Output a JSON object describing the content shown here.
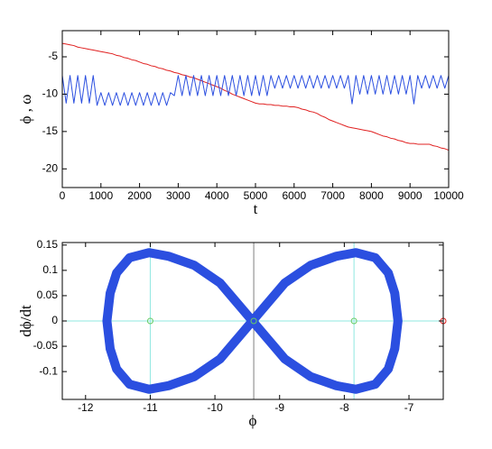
{
  "chart_data": [
    {
      "type": "line",
      "xlabel": "t",
      "ylabel": "ϕ , ω",
      "x": [
        0,
        100,
        200,
        300,
        400,
        500,
        600,
        700,
        800,
        900,
        1000,
        1100,
        1200,
        1300,
        1400,
        1500,
        1600,
        1700,
        1800,
        1900,
        2000,
        2100,
        2200,
        2300,
        2400,
        2500,
        2600,
        2700,
        2800,
        2900,
        3000,
        3100,
        3200,
        3300,
        3400,
        3500,
        3600,
        3700,
        3800,
        3900,
        4000,
        4100,
        4200,
        4300,
        4400,
        4500,
        4600,
        4700,
        4800,
        4900,
        5000,
        5100,
        5200,
        5300,
        5400,
        5500,
        5600,
        5700,
        5800,
        5900,
        6000,
        6100,
        6200,
        6300,
        6400,
        6500,
        6600,
        6700,
        6800,
        6900,
        7000,
        7100,
        7200,
        7300,
        7400,
        7500,
        7600,
        7700,
        7800,
        7900,
        8000,
        8100,
        8200,
        8300,
        8400,
        8500,
        8600,
        8700,
        8800,
        8900,
        9000,
        9100,
        9200,
        9300,
        9400,
        9500,
        9600,
        9700,
        9800,
        9900,
        10000
      ],
      "series": [
        {
          "color": "#e02020",
          "values": [
            -3.2,
            -3.3,
            -3.4,
            -3.5,
            -3.7,
            -3.8,
            -3.9,
            -4.0,
            -4.1,
            -4.2,
            -4.3,
            -4.4,
            -4.5,
            -4.6,
            -4.8,
            -4.9,
            -5.1,
            -5.2,
            -5.4,
            -5.5,
            -5.7,
            -5.9,
            -6.0,
            -6.2,
            -6.3,
            -6.5,
            -6.6,
            -6.8,
            -6.9,
            -7.1,
            -7.2,
            -7.4,
            -7.5,
            -7.7,
            -7.8,
            -8.0,
            -8.2,
            -8.4,
            -8.6,
            -8.8,
            -9.0,
            -9.2,
            -9.5,
            -9.7,
            -10.0,
            -10.2,
            -10.4,
            -10.6,
            -10.8,
            -11.0,
            -11.2,
            -11.3,
            -11.3,
            -11.4,
            -11.4,
            -11.5,
            -11.5,
            -11.6,
            -11.6,
            -11.7,
            -11.7,
            -11.8,
            -12.0,
            -12.1,
            -12.3,
            -12.4,
            -12.6,
            -12.9,
            -13.1,
            -13.4,
            -13.6,
            -13.8,
            -14.0,
            -14.2,
            -14.4,
            -14.5,
            -14.6,
            -14.7,
            -14.8,
            -14.9,
            -15.0,
            -15.2,
            -15.4,
            -15.6,
            -15.7,
            -15.9,
            -16.0,
            -16.2,
            -16.3,
            -16.5,
            -16.6,
            -16.6,
            -16.7,
            -16.7,
            -16.7,
            -16.7,
            -16.9,
            -17.0,
            -17.2,
            -17.3,
            -17.5
          ]
        },
        {
          "color": "#2b4fe0",
          "values": [
            -7.5,
            -11.2,
            -7.5,
            -11.2,
            -7.5,
            -11.2,
            -7.5,
            -11.2,
            -7.5,
            -11.5,
            -9.8,
            -11.5,
            -9.8,
            -11.5,
            -9.8,
            -11.5,
            -9.8,
            -11.5,
            -9.8,
            -11.5,
            -9.8,
            -11.5,
            -9.8,
            -11.5,
            -9.8,
            -11.5,
            -9.8,
            -11.5,
            -9.8,
            -10.2,
            -7.5,
            -10.2,
            -7.5,
            -10.2,
            -7.5,
            -10.2,
            -7.5,
            -10.2,
            -7.5,
            -10.2,
            -7.5,
            -10.2,
            -7.5,
            -10.2,
            -7.5,
            -10.2,
            -7.5,
            -10.2,
            -7.5,
            -10.2,
            -7.5,
            -10.2,
            -7.5,
            -10.2,
            -7.5,
            -9.2,
            -7.5,
            -9.2,
            -7.5,
            -9.2,
            -7.5,
            -9.2,
            -7.5,
            -9.2,
            -7.5,
            -9.2,
            -7.5,
            -9.2,
            -7.5,
            -9.2,
            -7.5,
            -9.2,
            -7.5,
            -9.2,
            -7.5,
            -11.3,
            -7.5,
            -10.0,
            -7.5,
            -10.0,
            -7.5,
            -10.0,
            -7.5,
            -10.0,
            -7.5,
            -10.0,
            -7.5,
            -10.0,
            -7.5,
            -10.0,
            -7.5,
            -11.3,
            -7.5,
            -9.2,
            -7.5,
            -9.2,
            -7.5,
            -9.2,
            -7.5,
            -9.2,
            -7.5
          ]
        }
      ],
      "xlim": [
        0,
        10000
      ],
      "xticks": [
        0,
        1000,
        2000,
        3000,
        4000,
        5000,
        6000,
        7000,
        8000,
        9000,
        10000
      ],
      "ylim": [
        -22.5,
        -1.5
      ],
      "yticks": [
        -20,
        -15,
        -10,
        -5
      ]
    },
    {
      "type": "line",
      "xlabel": "ϕ",
      "ylabel": "dϕ/dt",
      "x": [
        -9.42,
        -9.22,
        -8.92,
        -8.52,
        -8.12,
        -7.82,
        -7.52,
        -7.32,
        -7.22,
        -7.17,
        -7.22,
        -7.32,
        -7.52,
        -7.82,
        -8.12,
        -8.52,
        -8.92,
        -9.22,
        -9.42,
        -9.62,
        -9.92,
        -10.32,
        -10.72,
        -11.02,
        -11.32,
        -11.52,
        -11.62,
        -11.67,
        -11.62,
        -11.52,
        -11.32,
        -11.02,
        -10.72,
        -10.32,
        -9.92,
        -9.62,
        -9.42
      ],
      "series": [
        {
          "color": "#2b4fe0",
          "values": [
            0,
            0.03,
            0.075,
            0.11,
            0.128,
            0.135,
            0.125,
            0.095,
            0.055,
            0,
            -0.055,
            -0.095,
            -0.125,
            -0.135,
            -0.128,
            -0.11,
            -0.075,
            -0.03,
            0,
            0.03,
            0.075,
            0.11,
            0.128,
            0.135,
            0.125,
            0.095,
            0.055,
            0,
            -0.055,
            -0.095,
            -0.125,
            -0.135,
            -0.128,
            -0.11,
            -0.075,
            -0.03,
            0
          ]
        }
      ],
      "reference_lines": [
        {
          "orientation": "v",
          "value": -11.0,
          "color": "#8fe8e0"
        },
        {
          "orientation": "v",
          "value": -7.85,
          "color": "#8fe8e0"
        },
        {
          "orientation": "h",
          "value": 0,
          "color": "#8fe8e0"
        },
        {
          "orientation": "v",
          "value": -9.4,
          "color": "#808080"
        }
      ],
      "points": {
        "x": [
          -11.0,
          -7.85,
          -9.4,
          -6.47
        ],
        "y": [
          0,
          0,
          0,
          0
        ],
        "colors": [
          "#66cc66",
          "#66cc66",
          "#66cc66",
          "#e02020"
        ]
      },
      "xlim": [
        -12.36,
        -6.47
      ],
      "xticks": [
        -12,
        -11,
        -10,
        -9,
        -8,
        -7
      ],
      "ylim": [
        -0.155,
        0.155
      ],
      "yticks": [
        -0.1,
        -0.05,
        0,
        0.05,
        0.1,
        0.15
      ]
    }
  ]
}
